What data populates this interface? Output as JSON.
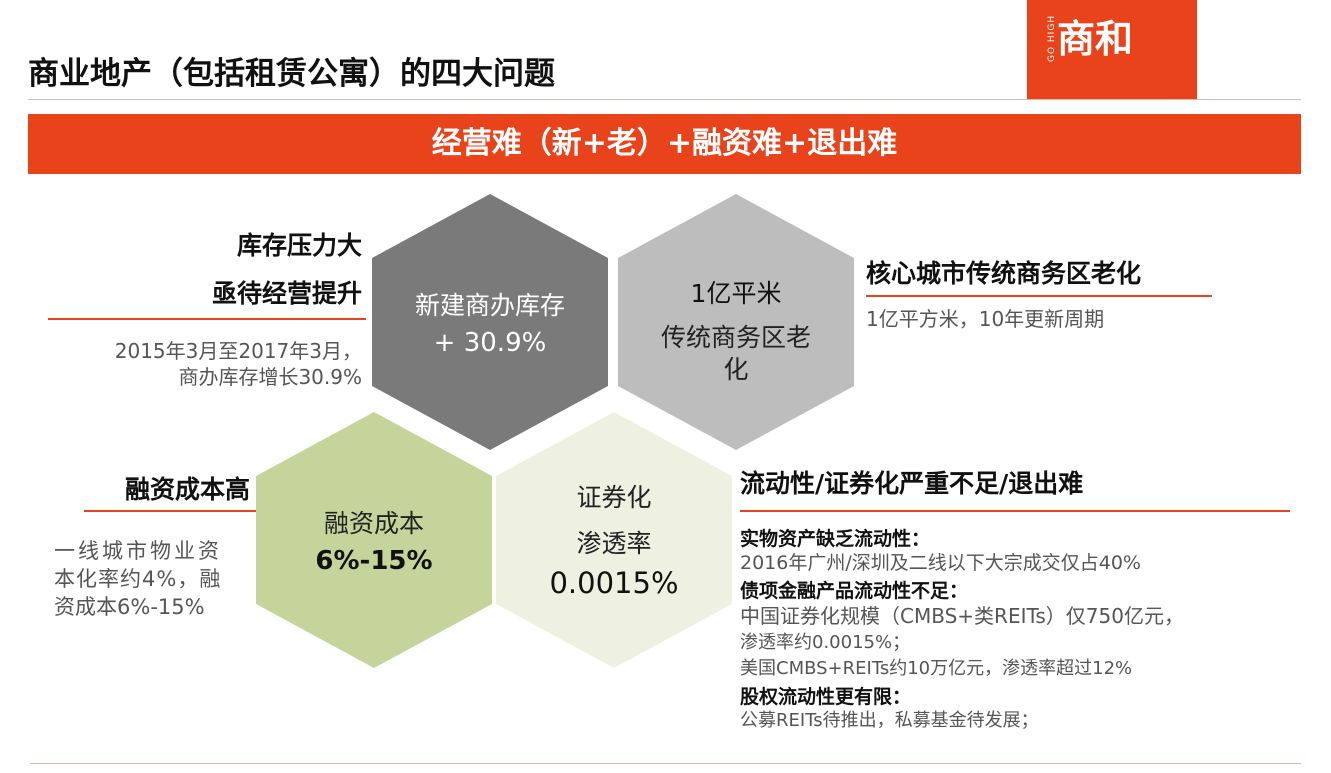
{
  "title": "商业地产（包括租赁公寓）的四大问题",
  "logo": {
    "brand": "商和",
    "tag": "GO HIGH"
  },
  "banner": "经营难（新+老）+融资难+退出难",
  "hexagons": {
    "inventory": {
      "line1": "新建商办库存",
      "line2": "+ 30.9%"
    },
    "cbd": {
      "line1": "1亿平米",
      "line2": "传统商务区老",
      "line3": "化"
    },
    "finance": {
      "line1": "融资成本",
      "line2": "6%-15%"
    },
    "securitization": {
      "line1": "证券化",
      "line2": "渗透率",
      "line3": "0.0015%"
    }
  },
  "left_top": {
    "heading1": "库存压力大",
    "heading2": "亟待经营提升",
    "detail1": "2015年3月至2017年3月，",
    "detail2": "商办库存增长30.9%"
  },
  "left_bottom": {
    "heading": "融资成本高",
    "detail1": "一线城市物业资",
    "detail2": "本化率约4%，融",
    "detail3": "资成本6%-15%"
  },
  "right_top": {
    "heading": "核心城市传统商务区老化",
    "detail": "1亿平方米，10年更新周期"
  },
  "right_bottom": {
    "heading": "流动性/证券化严重不足/退出难",
    "item1_title": "实物资产缺乏流动性",
    "item1_line1": "2016年广州/深圳及二线以下大宗成交仅占40%",
    "item2_title": "债项金融产品流动性不足",
    "item2_line1": "中国证券化规模（CMBS+类REITs）仅750亿元，",
    "item2_line2": "渗透率约0.0015%；",
    "item2_line3": "美国CMBS+REITs约10万亿元，渗透率超过12%",
    "item3_title": "股权流动性更有限",
    "item3_line1": "公募REITs待推出，私募基金待发展；"
  },
  "colors": {
    "accent": "#e8431a",
    "hex_dark_gray": "#7a7a7a",
    "hex_light_gray": "#bdbdbd",
    "hex_green": "#c5d49a",
    "hex_light_green": "#eef0e1"
  }
}
